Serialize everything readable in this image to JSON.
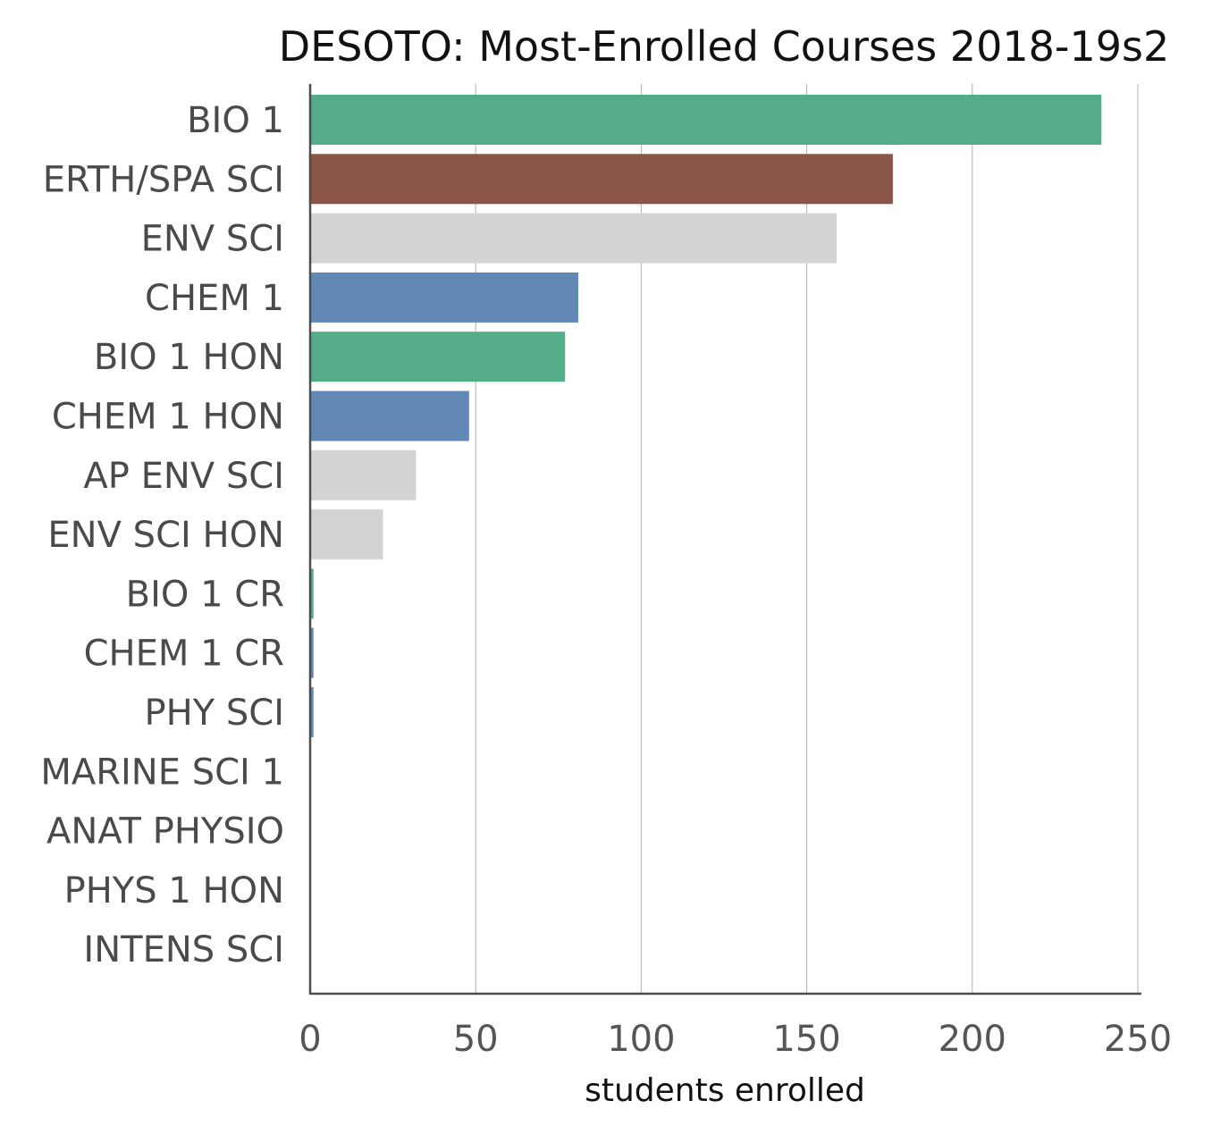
{
  "chart_data": {
    "type": "bar",
    "orientation": "horizontal",
    "title": "DESOTO: Most-Enrolled Courses 2018-19s2",
    "xlabel": "students enrolled",
    "ylabel": "",
    "xlim": [
      0,
      250
    ],
    "xticks": [
      0,
      50,
      100,
      150,
      200,
      250
    ],
    "grid": "vertical",
    "categories": [
      "BIO 1",
      "ERTH/SPA SCI",
      "ENV SCI",
      "CHEM 1",
      "BIO 1 HON",
      "CHEM 1 HON",
      "AP ENV SCI",
      "ENV SCI HON",
      "BIO 1 CR",
      "CHEM 1 CR",
      "PHY SCI",
      "MARINE SCI 1",
      "ANAT PHYSIO",
      "PHYS 1 HON",
      "INTENS SCI"
    ],
    "values": [
      239,
      176,
      159,
      81,
      77,
      48,
      32,
      22,
      1,
      1,
      1,
      0,
      0,
      0,
      0
    ],
    "colors": [
      "#55ac88",
      "#8b5549",
      "#d3d3d3",
      "#6288b5",
      "#55ac88",
      "#6288b5",
      "#d3d3d3",
      "#d3d3d3",
      "#55ac88",
      "#6288b5",
      "#6288b5",
      "#d3d3d3",
      "#d3d3d3",
      "#d3d3d3",
      "#d3d3d3"
    ]
  }
}
